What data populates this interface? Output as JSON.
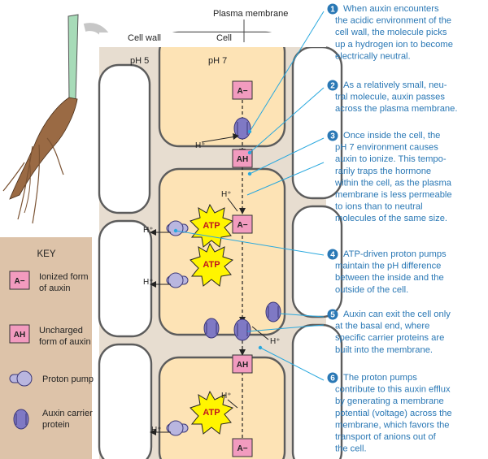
{
  "labels": {
    "plasma_membrane": "Plasma membrane",
    "cell_wall": "Cell wall",
    "cell": "Cell",
    "ph_wall": "pH 5",
    "ph_cell": "pH 7",
    "ionized": "A−",
    "uncharged": "AH",
    "h_plus": "H⁺",
    "atp": "ATP"
  },
  "key": {
    "title": "KEY",
    "ionized_lines": [
      "Ionized form",
      "of auxin"
    ],
    "uncharged_lines": [
      "Uncharged",
      "form of auxin"
    ],
    "proton_pump_lines": [
      "Proton pump"
    ],
    "carrier_lines": [
      "Auxin carrier",
      "protein"
    ]
  },
  "steps": [
    {
      "num": "1",
      "lines": [
        "When auxin encounters",
        "the acidic environment of the",
        "cell wall, the molecule picks",
        "up a hydrogen ion to become",
        "electrically neutral."
      ]
    },
    {
      "num": "2",
      "lines": [
        "As a relatively small, neu-",
        "tral molecule, auxin passes",
        "across the plasma membrane."
      ]
    },
    {
      "num": "3",
      "lines": [
        "Once inside the cell, the",
        "pH 7 environment causes",
        "auxin to ionize. This tempo-",
        "rarily traps the hormone",
        "within the cell, as the plasma",
        "membrane is less permeable",
        "to ions than to neutral",
        "molecules of the same size."
      ]
    },
    {
      "num": "4",
      "lines": [
        "ATP-driven proton pumps",
        "maintain the pH difference",
        "between the inside and the",
        "outside of the cell."
      ]
    },
    {
      "num": "5",
      "lines": [
        "Auxin can exit the cell only",
        "at the basal end, where",
        "specific carrier proteins are",
        "built into the membrane."
      ]
    },
    {
      "num": "6",
      "lines": [
        "The proton pumps",
        "contribute to this auxin efflux",
        "by generating a membrane",
        "potential (voltage) across the",
        "membrane, which favors the",
        "transport of anions out of",
        "the cell."
      ]
    }
  ],
  "colors": {
    "wall": "#e7ddd0",
    "cytoplasm": "#fde3b5",
    "membrane": "#6e6e6e",
    "box_fill": "#f29bbf",
    "key_bg": "#ddc3a9",
    "step_blue": "#2a78b5",
    "pointer_blue": "#29a8de",
    "atp_yellow": "#fff500",
    "pump_purple": "#b9b6df",
    "carrier_purple": "#7f79c4",
    "seedling_green": "#a7dbb8",
    "root_brown": "#9a6a44"
  }
}
